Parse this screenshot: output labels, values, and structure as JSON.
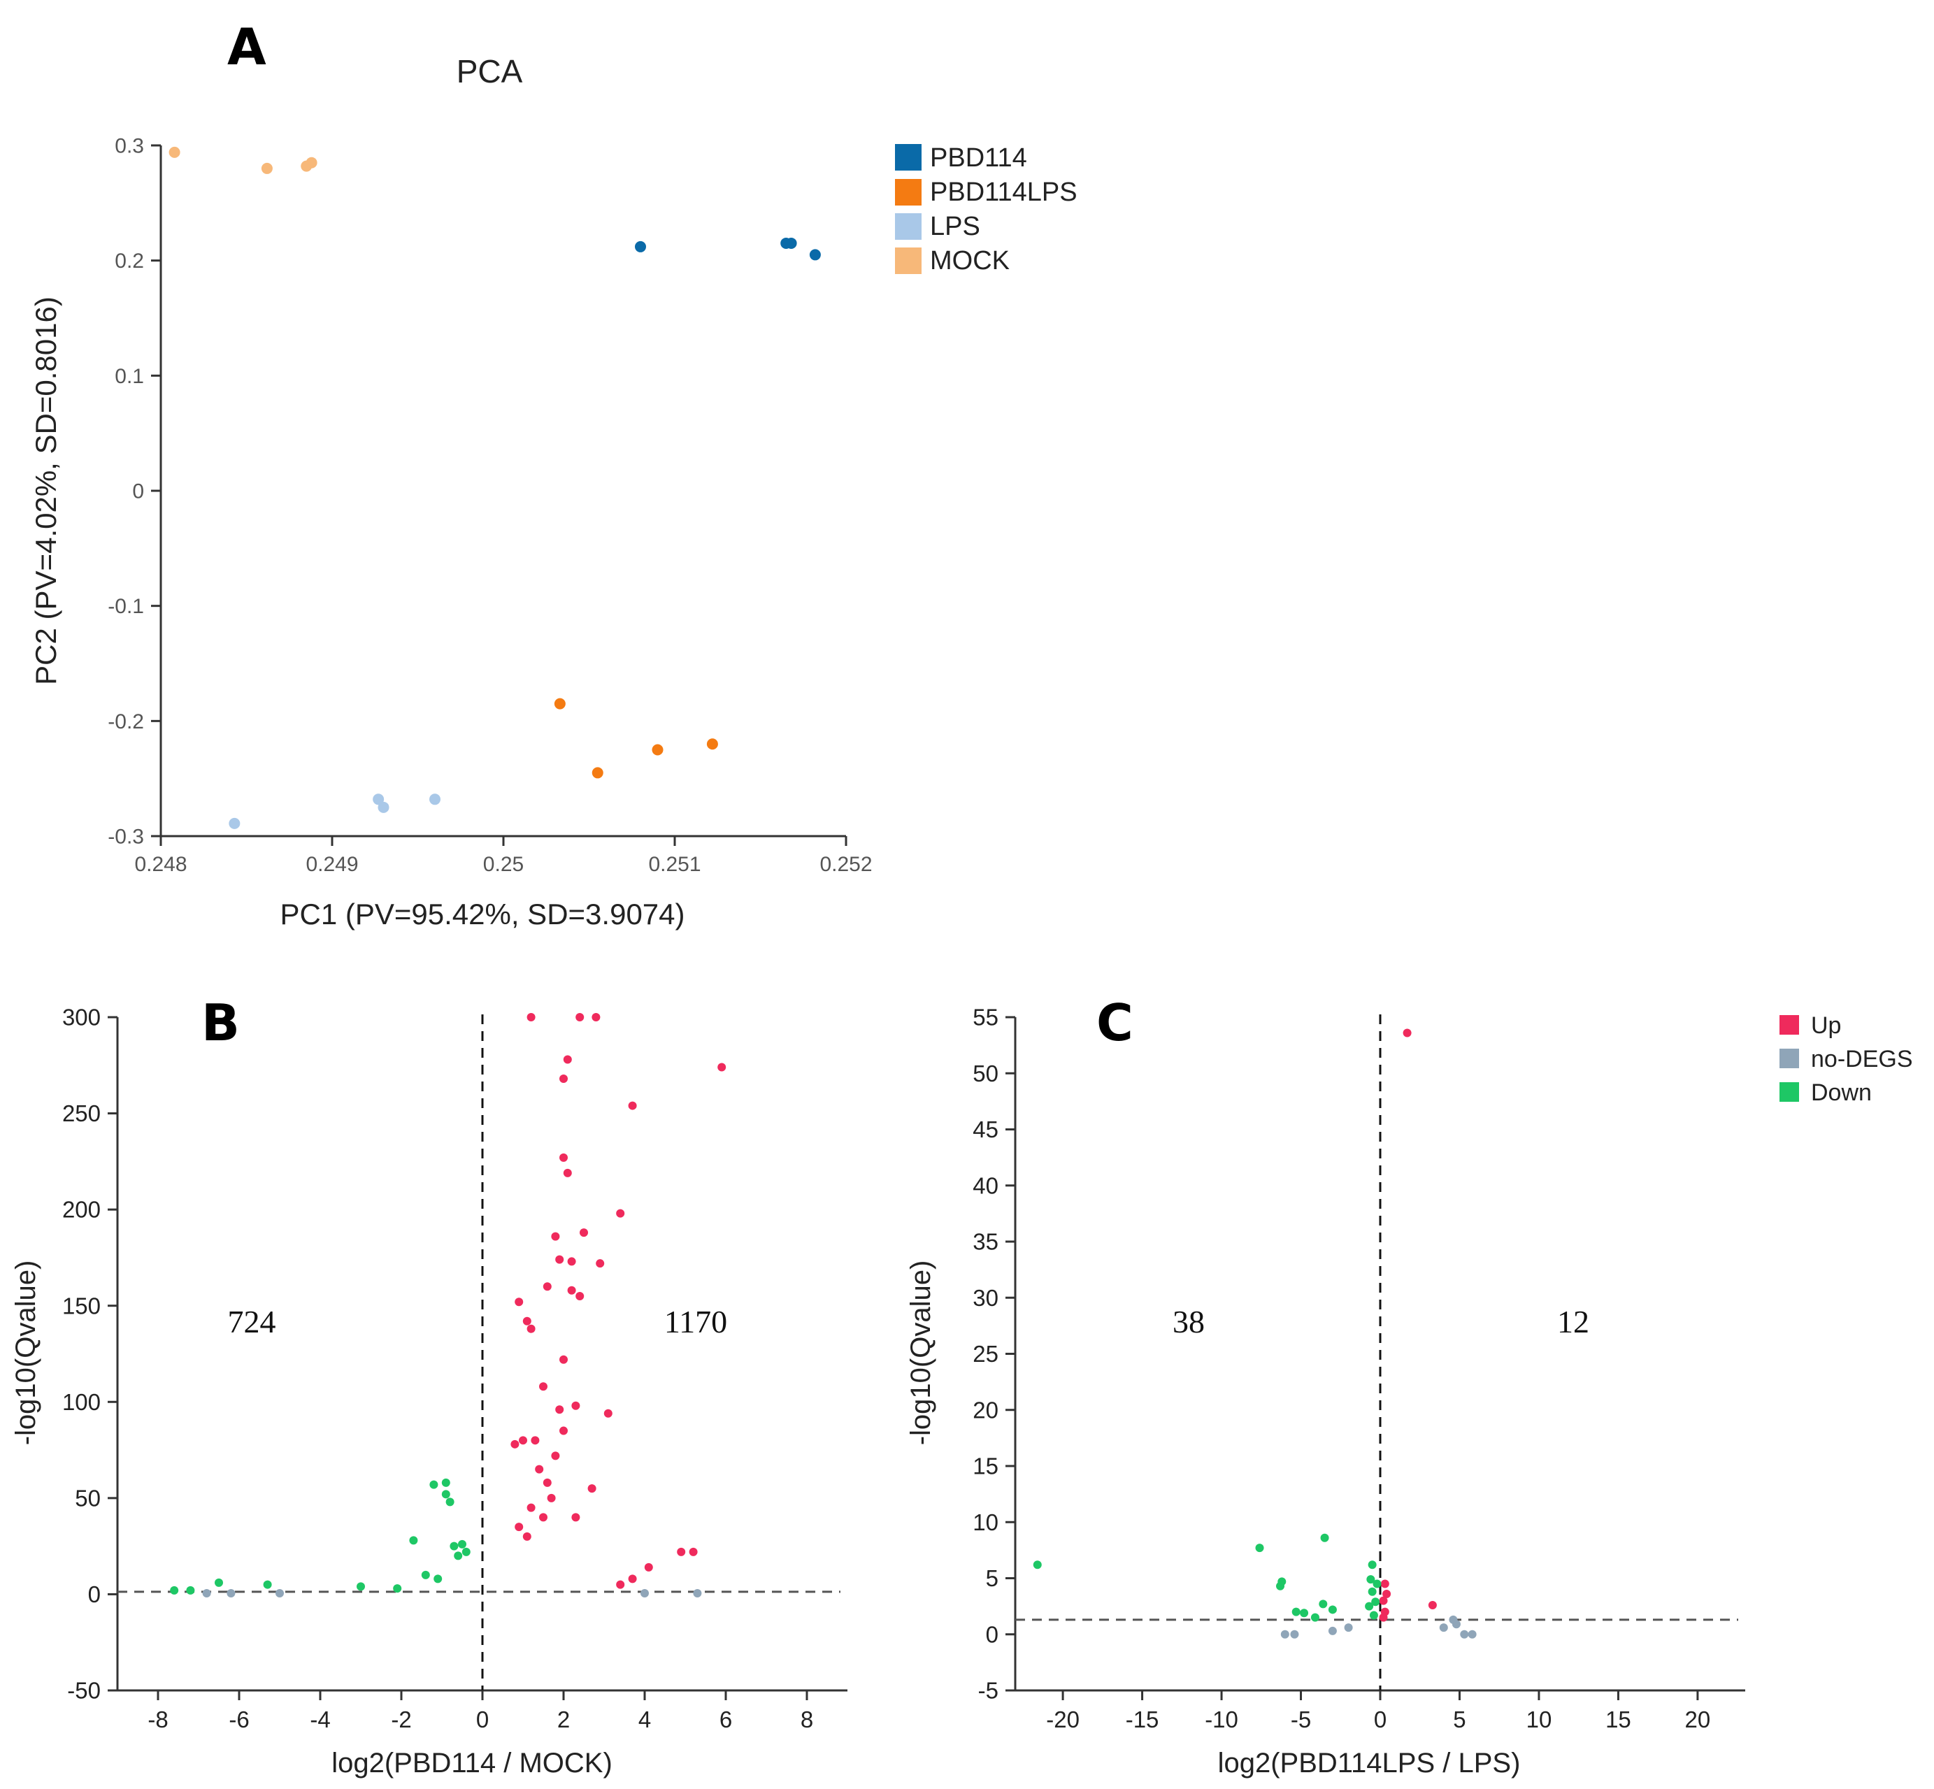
{
  "colors": {
    "pbd114": "#0a6aa8",
    "pbd114lps": "#f47b12",
    "lps": "#a9c8e8",
    "mock": "#f7b879",
    "up": "#ef2a5c",
    "nodegs": "#8fa5b8",
    "down": "#1ec765",
    "axis": "#333333",
    "tick_text": "#555555",
    "dashed": "#555555"
  },
  "chart_data": [
    {
      "id": "A",
      "type": "scatter",
      "panel_letter": "A",
      "title": "PCA",
      "xlabel": "PC1 (PV=95.42%, SD=3.9074)",
      "ylabel": "PC2 (PV=4.02%, SD=0.8016)",
      "xlim": [
        0.248,
        0.252
      ],
      "ylim": [
        -0.3,
        0.3
      ],
      "xticks": [
        0.248,
        0.249,
        0.25,
        0.251,
        0.252
      ],
      "xtick_labels": [
        "0.248",
        "0.249",
        "0.25",
        "0.251",
        "0.252"
      ],
      "yticks": [
        0.3,
        0.2,
        0.1,
        0,
        -0.1,
        -0.2,
        -0.3
      ],
      "ytick_labels": [
        "0.3",
        "0.2",
        "0.1",
        "0",
        "-0.1",
        "-0.2",
        "-0.3"
      ],
      "legend_position": "right",
      "series": [
        {
          "name": "PBD114",
          "color_key": "pbd114",
          "points": [
            [
              0.2508,
              0.212
            ],
            [
              0.25165,
              0.215
            ],
            [
              0.25168,
              0.215
            ],
            [
              0.25182,
              0.205
            ]
          ]
        },
        {
          "name": "PBD114LPS",
          "color_key": "pbd114lps",
          "points": [
            [
              0.25033,
              -0.185
            ],
            [
              0.25055,
              -0.245
            ],
            [
              0.2509,
              -0.225
            ],
            [
              0.25122,
              -0.22
            ]
          ]
        },
        {
          "name": "LPS",
          "color_key": "lps",
          "points": [
            [
              0.24843,
              -0.289
            ],
            [
              0.24927,
              -0.268
            ],
            [
              0.2493,
              -0.275
            ],
            [
              0.2496,
              -0.268
            ]
          ]
        },
        {
          "name": "MOCK",
          "color_key": "mock",
          "points": [
            [
              0.24808,
              0.294
            ],
            [
              0.24862,
              0.28
            ],
            [
              0.24885,
              0.282
            ],
            [
              0.24888,
              0.285
            ]
          ]
        }
      ]
    },
    {
      "id": "B",
      "type": "scatter",
      "panel_letter": "B",
      "xlabel": "log2(PBD114 / MOCK)",
      "ylabel": "-log10(Qvalue)",
      "xlim": [
        -9,
        9
      ],
      "ylim": [
        -50,
        300
      ],
      "xticks": [
        -8,
        -6,
        -4,
        -2,
        0,
        2,
        4,
        6,
        8
      ],
      "xtick_labels": [
        "-8",
        "-6",
        "-4",
        "-2",
        "0",
        "2",
        "4",
        "6",
        "8"
      ],
      "yticks": [
        300,
        250,
        200,
        150,
        100,
        50,
        0,
        -50
      ],
      "ytick_labels": [
        "300",
        "250",
        "200",
        "150",
        "100",
        "50",
        "0",
        "-50"
      ],
      "threshold_y": 1.3,
      "threshold_x": 0,
      "down_count": "724",
      "up_count": "1170",
      "series": [
        {
          "name": "Up",
          "color_key": "up",
          "points": [
            [
              1.2,
              300
            ],
            [
              2.4,
              300
            ],
            [
              2.8,
              300
            ],
            [
              5.9,
              274
            ],
            [
              2.1,
              278
            ],
            [
              2.0,
              268
            ],
            [
              3.7,
              254
            ],
            [
              2.0,
              227
            ],
            [
              2.1,
              219
            ],
            [
              3.4,
              198
            ],
            [
              1.8,
              186
            ],
            [
              2.5,
              188
            ],
            [
              1.9,
              174
            ],
            [
              2.2,
              173
            ],
            [
              2.9,
              172
            ],
            [
              1.6,
              160
            ],
            [
              2.2,
              158
            ],
            [
              2.4,
              155
            ],
            [
              0.9,
              152
            ],
            [
              1.1,
              142
            ],
            [
              1.2,
              138
            ],
            [
              2.0,
              122
            ],
            [
              1.5,
              108
            ],
            [
              2.3,
              98
            ],
            [
              1.9,
              96
            ],
            [
              3.1,
              94
            ],
            [
              4.9,
              22
            ],
            [
              5.2,
              22
            ],
            [
              4.1,
              14
            ],
            [
              3.7,
              8
            ],
            [
              3.4,
              5
            ],
            [
              2.7,
              55
            ],
            [
              2.3,
              40
            ],
            [
              2.0,
              85
            ],
            [
              1.8,
              72
            ],
            [
              1.4,
              65
            ],
            [
              1.6,
              58
            ],
            [
              1.7,
              50
            ],
            [
              1.3,
              80
            ],
            [
              1.0,
              80
            ],
            [
              0.8,
              78
            ],
            [
              1.2,
              45
            ],
            [
              1.5,
              40
            ],
            [
              0.9,
              35
            ],
            [
              1.1,
              30
            ]
          ]
        },
        {
          "name": "Down",
          "color_key": "down",
          "points": [
            [
              -1.2,
              57
            ],
            [
              -0.9,
              58
            ],
            [
              -0.9,
              52
            ],
            [
              -0.8,
              48
            ],
            [
              -1.7,
              28
            ],
            [
              -0.5,
              26
            ],
            [
              -0.7,
              25
            ],
            [
              -0.4,
              22
            ],
            [
              -0.6,
              20
            ],
            [
              -7.6,
              2
            ],
            [
              -7.2,
              2
            ],
            [
              -6.5,
              6
            ],
            [
              -5.3,
              5
            ],
            [
              -3.0,
              4
            ],
            [
              -2.1,
              3
            ],
            [
              -1.4,
              10
            ],
            [
              -1.1,
              8
            ]
          ]
        },
        {
          "name": "no-DEGS",
          "color_key": "nodegs",
          "points": [
            [
              -6.8,
              0.5
            ],
            [
              -6.2,
              0.5
            ],
            [
              -5.0,
              0.5
            ],
            [
              5.3,
              0.5
            ],
            [
              4.0,
              0.5
            ]
          ]
        }
      ]
    },
    {
      "id": "C",
      "type": "scatter",
      "panel_letter": "C",
      "xlabel": "log2(PBD114LPS / LPS)",
      "ylabel": "-log10(Qvalue)",
      "xlim": [
        -23,
        23
      ],
      "ylim": [
        -5,
        55
      ],
      "xticks": [
        -20,
        -15,
        -10,
        -5,
        0,
        5,
        10,
        15,
        20
      ],
      "xtick_labels": [
        "-20",
        "-15",
        "-10",
        "-5",
        "0",
        "5",
        "10",
        "15",
        "20"
      ],
      "yticks": [
        55,
        50,
        45,
        40,
        35,
        30,
        25,
        20,
        15,
        10,
        5,
        0,
        -5
      ],
      "ytick_labels": [
        "55",
        "50",
        "45",
        "40",
        "35",
        "30",
        "25",
        "20",
        "15",
        "10",
        "5",
        "0",
        "-5"
      ],
      "threshold_y": 1.3,
      "threshold_x": 0,
      "down_count": "38",
      "up_count": "12",
      "legend_position": "top-right",
      "legend": [
        "Up",
        "no-DEGS",
        "Down"
      ],
      "series": [
        {
          "name": "Up",
          "color_key": "up",
          "points": [
            [
              1.7,
              53.6
            ],
            [
              3.3,
              2.6
            ],
            [
              0.3,
              4.5
            ],
            [
              0.2,
              3.0
            ],
            [
              0.3,
              2.0
            ],
            [
              0.2,
              1.5
            ],
            [
              0.4,
              3.6
            ]
          ]
        },
        {
          "name": "Down",
          "color_key": "down",
          "points": [
            [
              -21.6,
              6.2
            ],
            [
              -7.6,
              7.7
            ],
            [
              -3.5,
              8.6
            ],
            [
              -6.2,
              4.7
            ],
            [
              -6.3,
              4.3
            ],
            [
              -5.3,
              2.0
            ],
            [
              -4.8,
              1.9
            ],
            [
              -3.6,
              2.7
            ],
            [
              -3.0,
              2.2
            ],
            [
              -0.5,
              6.2
            ],
            [
              -0.6,
              4.9
            ],
            [
              -0.5,
              3.8
            ],
            [
              -0.7,
              2.5
            ],
            [
              -0.4,
              1.7
            ],
            [
              -0.2,
              4.5
            ],
            [
              -0.3,
              2.9
            ],
            [
              -4.1,
              1.5
            ]
          ]
        },
        {
          "name": "no-DEGS",
          "color_key": "nodegs",
          "points": [
            [
              -6.0,
              0
            ],
            [
              -5.4,
              0
            ],
            [
              -3.0,
              0.3
            ],
            [
              -2.0,
              0.6
            ],
            [
              4.0,
              0.6
            ],
            [
              4.6,
              1.3
            ],
            [
              4.8,
              0.9
            ],
            [
              5.3,
              0
            ],
            [
              5.8,
              0
            ]
          ]
        }
      ]
    }
  ]
}
